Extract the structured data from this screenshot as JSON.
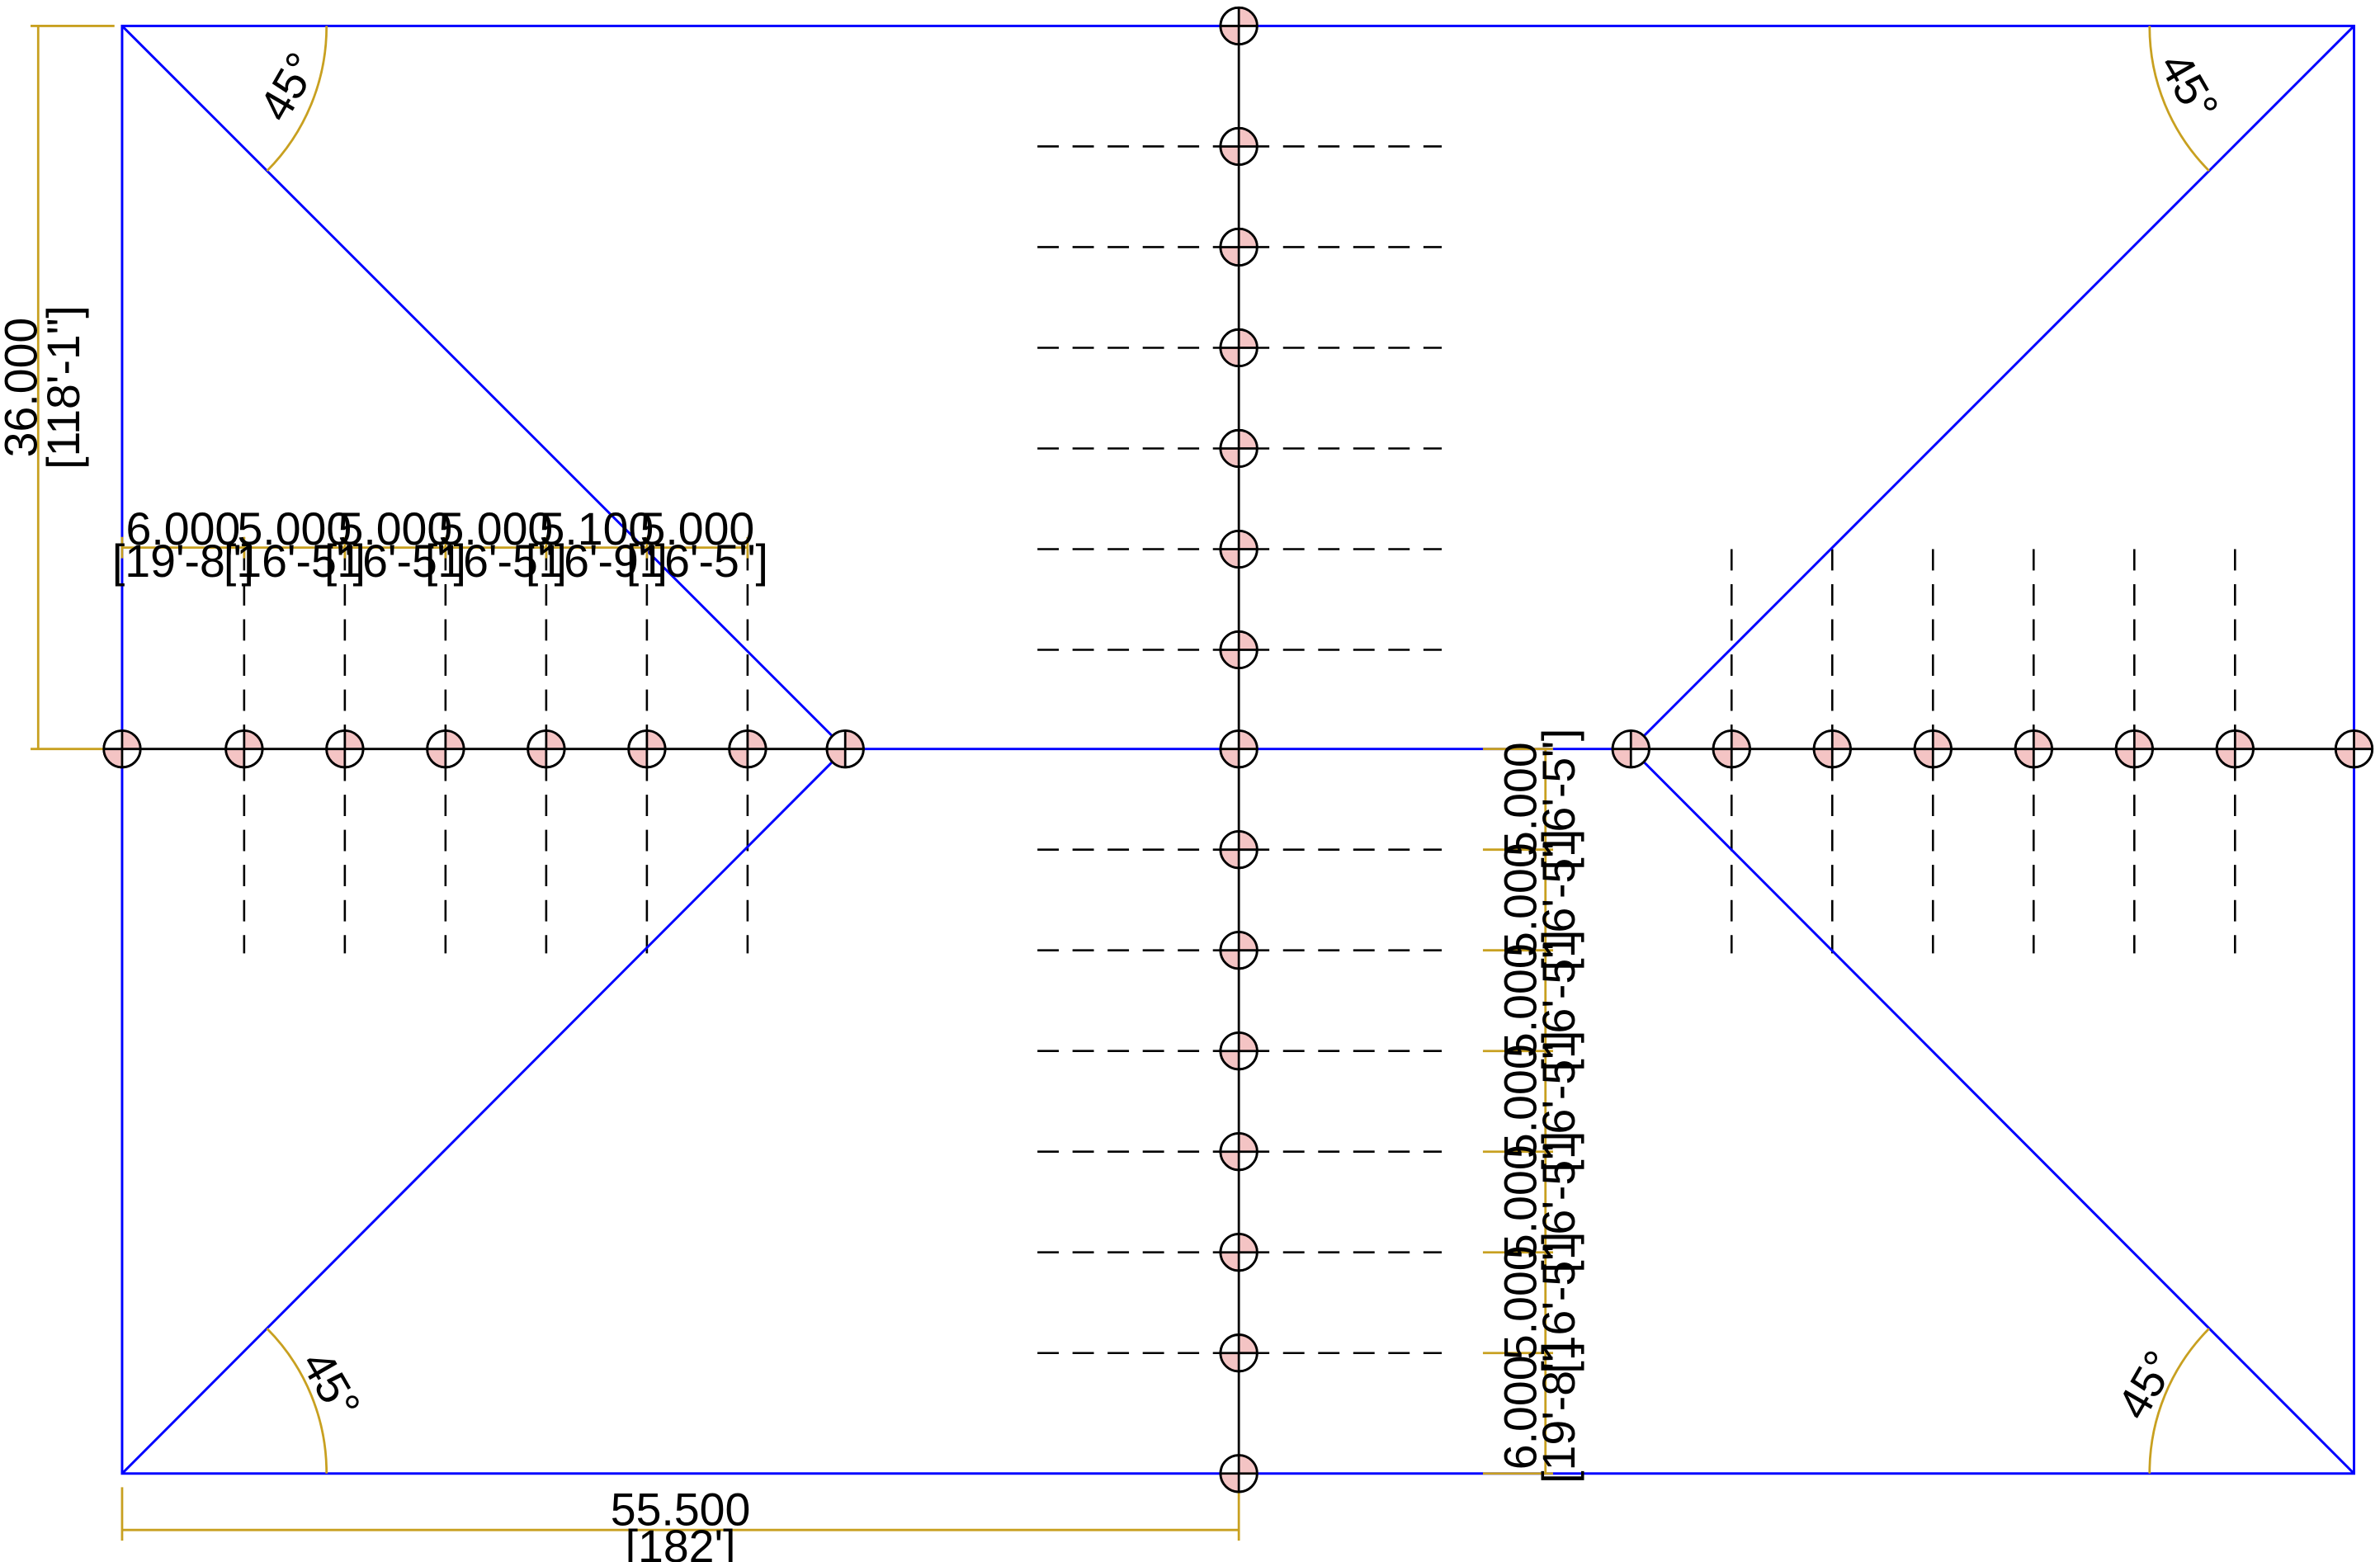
{
  "colors": {
    "outline": "#0000ff",
    "dimension": "#c8a020",
    "axis": "#000000",
    "marker_fill": "#f4c4c4"
  },
  "dimensions": {
    "overall_height": {
      "value": "36.000",
      "alt": "[118'-1\"]"
    },
    "overall_width": {
      "value": "55.500",
      "alt": "[182']"
    },
    "horizontal_spacing": [
      {
        "value": "6.000",
        "alt": "[19'-8\"]"
      },
      {
        "value": "5.000",
        "alt": "[16'-5\"]"
      },
      {
        "value": "5.000",
        "alt": "[16'-5\"]"
      },
      {
        "value": "5.000",
        "alt": "[16'-5\"]"
      },
      {
        "value": "5.100",
        "alt": "[16'-9\"]"
      },
      {
        "value": "5.000",
        "alt": "[16'-5\"]"
      }
    ],
    "vertical_spacing": [
      {
        "value": "5.000",
        "alt": "[16'-5\"]"
      },
      {
        "value": "5.000",
        "alt": "[16'-5\"]"
      },
      {
        "value": "5.000",
        "alt": "[16'-5\"]"
      },
      {
        "value": "5.000",
        "alt": "[16'-5\"]"
      },
      {
        "value": "5.000",
        "alt": "[16'-5\"]"
      },
      {
        "value": "5.000",
        "alt": "[16'-5\"]"
      },
      {
        "value": "6.000",
        "alt": "[19'-8\"]"
      }
    ]
  },
  "angles": {
    "top_left": "45°",
    "top_right": "45°",
    "bottom_left": "45°",
    "bottom_right": "45°"
  }
}
